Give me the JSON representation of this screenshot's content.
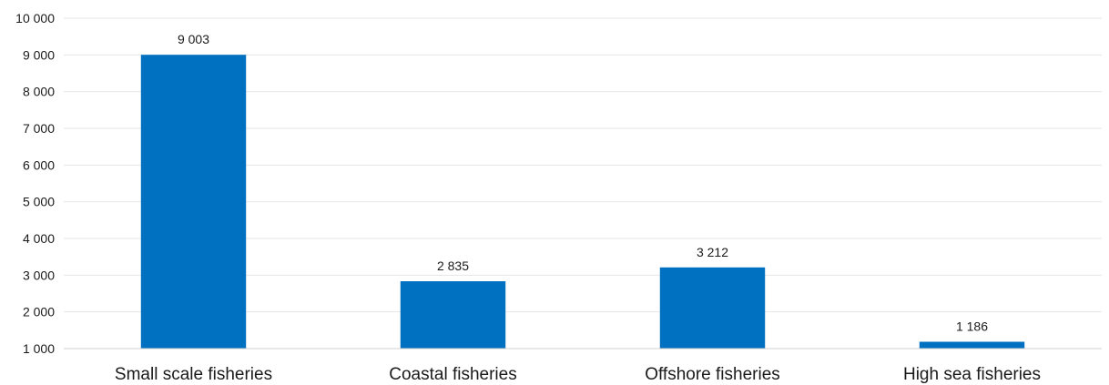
{
  "chart_data": {
    "type": "bar",
    "categories": [
      "Small scale fisheries",
      "Coastal fisheries",
      "Offshore fisheries",
      "High sea fisheries"
    ],
    "values": [
      9003,
      2835,
      3212,
      1186
    ],
    "data_labels": [
      "9 003",
      "2 835",
      "3 212",
      "1 186"
    ],
    "y_ticks": [
      1000,
      2000,
      3000,
      4000,
      5000,
      6000,
      7000,
      8000,
      9000,
      10000
    ],
    "y_tick_labels": [
      "1 000",
      "2 000",
      "3 000",
      "4 000",
      "5 000",
      "6 000",
      "7 000",
      "8 000",
      "9 000",
      "10 000"
    ],
    "ylim": [
      1000,
      10000
    ],
    "grid": true,
    "bar_color": "#0070c0",
    "title": "",
    "xlabel": "",
    "ylabel": ""
  }
}
